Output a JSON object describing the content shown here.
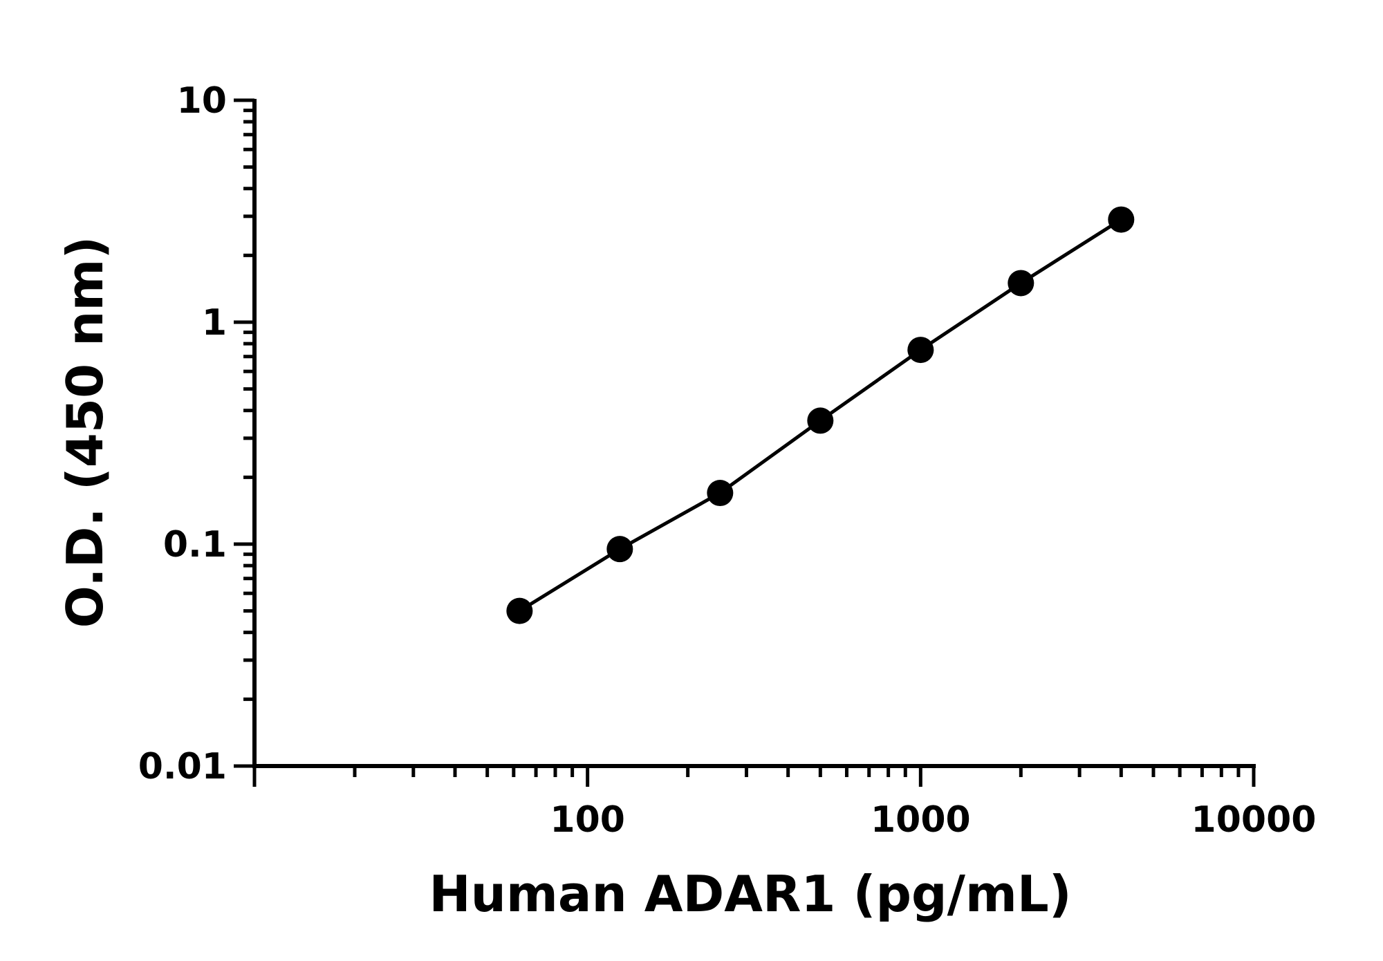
{
  "chart_data": {
    "type": "line",
    "title": "",
    "xlabel": "Human ADAR1 (pg/mL)",
    "ylabel": "O.D. (450 nm)",
    "x_scale": "log",
    "y_scale": "log",
    "xlim": [
      10,
      10000
    ],
    "ylim": [
      0.01,
      10
    ],
    "x_tick_labels": [
      {
        "value": 100,
        "label": "100"
      },
      {
        "value": 1000,
        "label": "1000"
      },
      {
        "value": 10000,
        "label": "10000"
      }
    ],
    "y_tick_labels": [
      {
        "value": 10,
        "label": "10"
      },
      {
        "value": 1,
        "label": "1"
      },
      {
        "value": 0.1,
        "label": "0.1"
      },
      {
        "value": 0.01,
        "label": "0.01"
      }
    ],
    "grid": false,
    "legend": "none",
    "series": [
      {
        "color": "#000000",
        "marker": "circle",
        "x": [
          62.5,
          125,
          250,
          500,
          1000,
          2000,
          4000
        ],
        "y": [
          0.05,
          0.095,
          0.17,
          0.36,
          0.75,
          1.5,
          2.9
        ]
      }
    ]
  }
}
